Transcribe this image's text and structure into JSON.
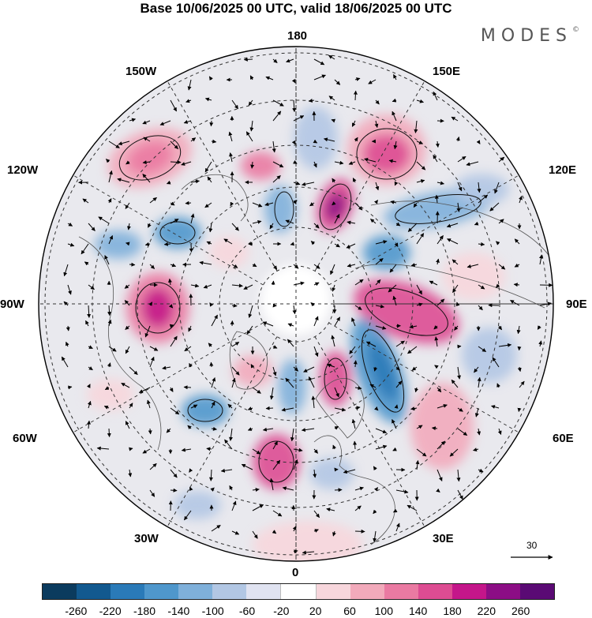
{
  "title": "Base 10/06/2025 00 UTC, valid 18/06/2025 00 UTC",
  "brand": "MODES",
  "brand_mark": "©",
  "longitude_labels": {
    "top": "180",
    "top_left": "150W",
    "top_right": "150E",
    "upper_left": "120W",
    "upper_right": "120E",
    "left": "90W",
    "right": "90E",
    "lower_left": "60W",
    "lower_right": "60E",
    "bottom_left": "30W",
    "bottom_right": "30E",
    "bottom": "0"
  },
  "reference_vector": {
    "label": "30"
  },
  "colorbar": {
    "ticks": [
      "-260",
      "-220",
      "-180",
      "-140",
      "-100",
      "-60",
      "-20",
      "20",
      "60",
      "100",
      "140",
      "180",
      "220",
      "260"
    ],
    "colors": [
      "#0b3b5e",
      "#12598f",
      "#2a7ab8",
      "#4f97cc",
      "#7fb0da",
      "#b2c7e4",
      "#e0e3f1",
      "#ffffff",
      "#f7d6dc",
      "#f2aabb",
      "#ea7aa2",
      "#dd4c92",
      "#c4168a",
      "#8c0d85",
      "#5a0a74"
    ]
  }
}
